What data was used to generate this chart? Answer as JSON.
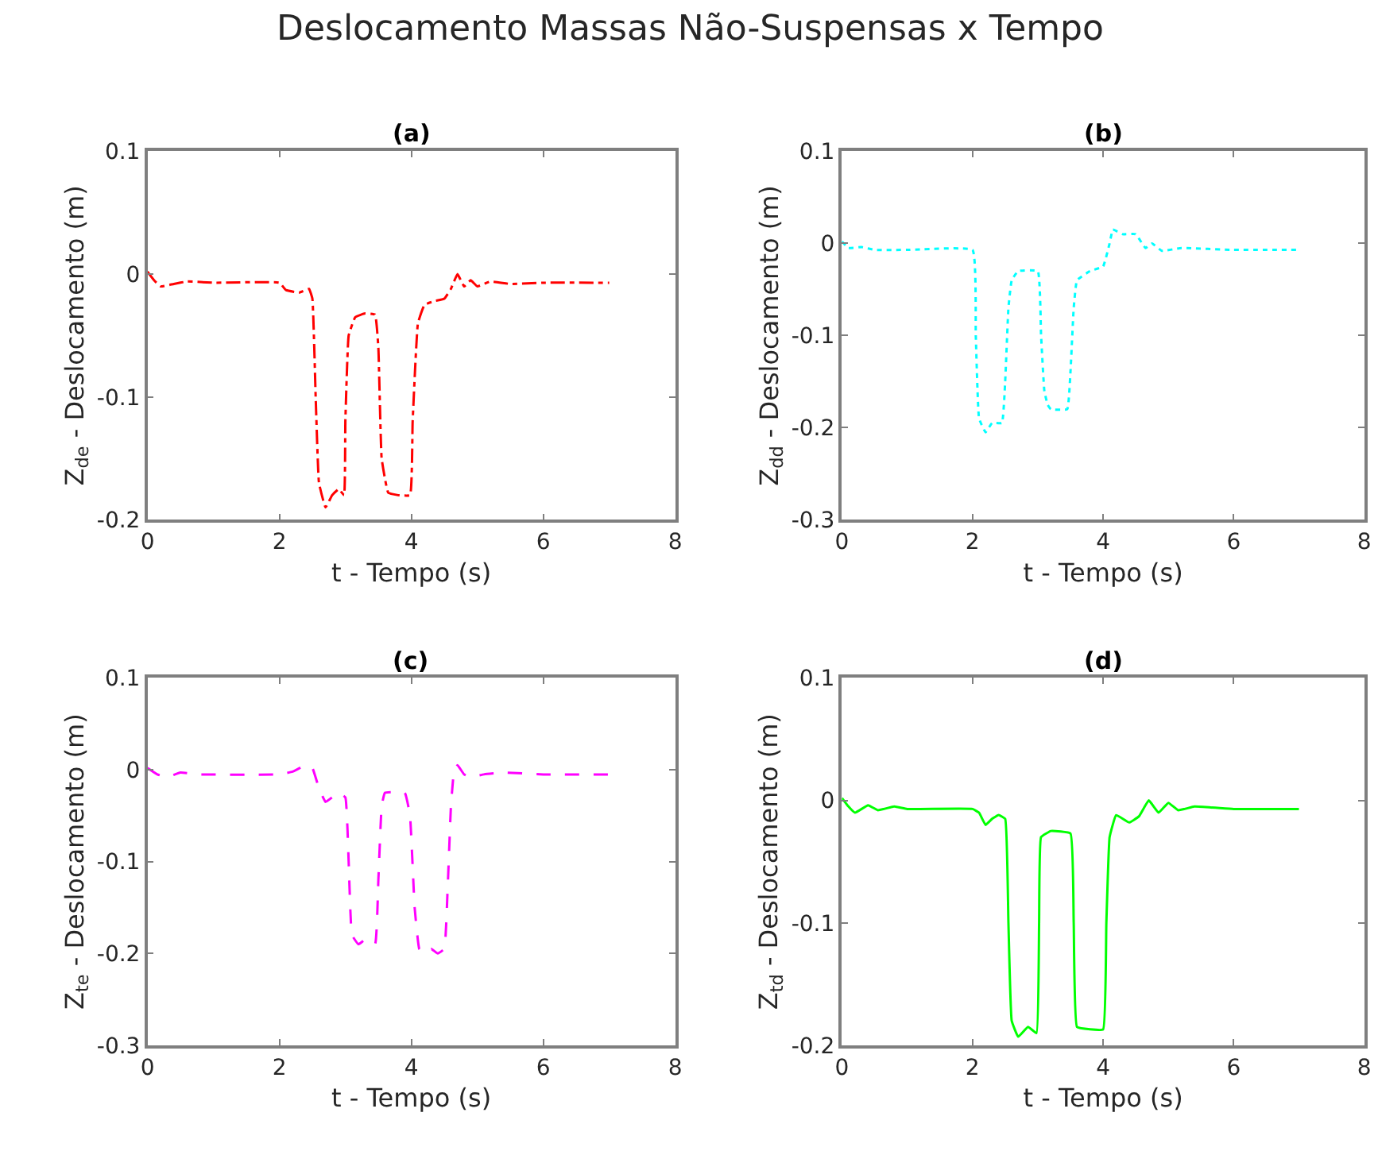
{
  "chart_data": [
    {
      "type": "line",
      "title": "(a)",
      "annotations": [
        "Deslocamento Massas Não-Suspensas x Tempo"
      ],
      "xlabel": "t - Tempo (s)",
      "ylabel": "Z$_{de}$ - Deslocamento (m)",
      "color": "#ff0000",
      "line_style": "dashdot",
      "xlim": [
        0,
        8
      ],
      "ylim": [
        -0.2,
        0.1
      ],
      "xticks": [
        0,
        2,
        4,
        6,
        8
      ],
      "yticks": [
        -0.2,
        -0.1,
        0,
        0.1
      ],
      "x": [
        0,
        0.1,
        0.2,
        0.4,
        0.6,
        1,
        2,
        2.1,
        2.3,
        2.45,
        2.5,
        2.55,
        2.6,
        2.7,
        2.8,
        2.9,
        2.98,
        3.0,
        3.05,
        3.15,
        3.3,
        3.45,
        3.5,
        3.55,
        3.65,
        3.8,
        3.98,
        4.02,
        4.1,
        4.2,
        4.35,
        4.5,
        4.6,
        4.7,
        4.8,
        4.9,
        5.0,
        5.2,
        5.5,
        6,
        7
      ],
      "values": [
        0.002,
        -0.005,
        -0.01,
        -0.008,
        -0.006,
        -0.007,
        -0.007,
        -0.013,
        -0.015,
        -0.012,
        -0.02,
        -0.1,
        -0.17,
        -0.19,
        -0.18,
        -0.175,
        -0.18,
        -0.12,
        -0.05,
        -0.035,
        -0.032,
        -0.033,
        -0.06,
        -0.15,
        -0.178,
        -0.18,
        -0.18,
        -0.12,
        -0.04,
        -0.025,
        -0.022,
        -0.02,
        -0.012,
        0.0,
        -0.01,
        -0.005,
        -0.01,
        -0.006,
        -0.008,
        -0.007,
        -0.007
      ]
    },
    {
      "type": "line",
      "title": "(b)",
      "xlabel": "t - Tempo (s)",
      "ylabel": "Z$_{dd}$ - Deslocamento (m)",
      "color": "#00ffff",
      "line_style": "dotted",
      "xlim": [
        0,
        8
      ],
      "ylim": [
        -0.3,
        0.1
      ],
      "xticks": [
        0,
        2,
        4,
        6,
        8
      ],
      "yticks": [
        -0.3,
        -0.2,
        -0.1,
        0,
        0.1
      ],
      "x": [
        0,
        0.1,
        0.3,
        0.5,
        1,
        2.0,
        2.05,
        2.1,
        2.2,
        2.3,
        2.45,
        2.5,
        2.55,
        2.6,
        2.7,
        3.0,
        3.05,
        3.1,
        3.15,
        3.2,
        3.45,
        3.5,
        3.55,
        3.6,
        3.8,
        4.0,
        4.1,
        4.15,
        4.3,
        4.5,
        4.65,
        4.75,
        4.9,
        5.2,
        6,
        7
      ],
      "values": [
        0.002,
        -0.005,
        -0.004,
        -0.007,
        -0.007,
        -0.007,
        -0.1,
        -0.19,
        -0.205,
        -0.195,
        -0.195,
        -0.15,
        -0.07,
        -0.04,
        -0.03,
        -0.03,
        -0.1,
        -0.16,
        -0.175,
        -0.18,
        -0.18,
        -0.14,
        -0.07,
        -0.04,
        -0.03,
        -0.025,
        0.0,
        0.015,
        0.01,
        0.01,
        -0.005,
        0.0,
        -0.008,
        -0.005,
        -0.007,
        -0.007
      ]
    },
    {
      "type": "line",
      "title": "(c)",
      "xlabel": "t - Tempo (s)",
      "ylabel": "Z$_{te}$ - Deslocamento (m)",
      "color": "#ff00ff",
      "line_style": "dashed",
      "xlim": [
        0,
        8
      ],
      "ylim": [
        -0.3,
        0.1
      ],
      "xticks": [
        0,
        2,
        4,
        6,
        8
      ],
      "yticks": [
        -0.3,
        -0.2,
        -0.1,
        0,
        0.1
      ],
      "x": [
        0,
        0.15,
        0.3,
        0.5,
        0.8,
        2,
        2.2,
        2.4,
        2.5,
        2.6,
        2.7,
        2.8,
        2.9,
        3.0,
        3.05,
        3.1,
        3.2,
        3.3,
        3.45,
        3.5,
        3.55,
        3.6,
        3.9,
        3.98,
        4.05,
        4.12,
        4.2,
        4.3,
        4.4,
        4.5,
        4.55,
        4.6,
        4.65,
        4.7,
        4.8,
        4.9,
        5.1,
        5.4,
        6,
        7
      ],
      "values": [
        0.002,
        -0.005,
        -0.008,
        -0.003,
        -0.005,
        -0.005,
        -0.002,
        0.005,
        0.002,
        -0.02,
        -0.035,
        -0.03,
        -0.025,
        -0.03,
        -0.1,
        -0.18,
        -0.19,
        -0.185,
        -0.19,
        -0.12,
        -0.04,
        -0.025,
        -0.025,
        -0.05,
        -0.15,
        -0.195,
        -0.2,
        -0.195,
        -0.2,
        -0.195,
        -0.13,
        -0.04,
        0.0,
        0.005,
        -0.005,
        -0.008,
        -0.005,
        -0.003,
        -0.005,
        -0.005
      ]
    },
    {
      "type": "line",
      "title": "(d)",
      "xlabel": "t - Tempo (s)",
      "ylabel": "Z$_{td}$ - Deslocamento (m)",
      "color": "#00ff00",
      "line_style": "solid",
      "xlim": [
        0,
        8
      ],
      "ylim": [
        -0.2,
        0.1
      ],
      "xticks": [
        0,
        2,
        4,
        6,
        8
      ],
      "yticks": [
        -0.2,
        -0.1,
        0,
        0.1
      ],
      "x": [
        0,
        0.1,
        0.2,
        0.4,
        0.55,
        0.8,
        1,
        2,
        2.1,
        2.2,
        2.3,
        2.4,
        2.5,
        2.55,
        2.6,
        2.7,
        2.85,
        2.98,
        3.02,
        3.05,
        3.2,
        3.5,
        3.55,
        3.6,
        3.8,
        4.0,
        4.05,
        4.1,
        4.2,
        4.4,
        4.55,
        4.7,
        4.85,
        5.0,
        5.15,
        5.4,
        6,
        7
      ],
      "values": [
        0.002,
        -0.005,
        -0.01,
        -0.004,
        -0.008,
        -0.005,
        -0.007,
        -0.007,
        -0.01,
        -0.02,
        -0.015,
        -0.012,
        -0.015,
        -0.1,
        -0.18,
        -0.193,
        -0.185,
        -0.19,
        -0.1,
        -0.03,
        -0.025,
        -0.027,
        -0.1,
        -0.185,
        -0.187,
        -0.187,
        -0.1,
        -0.03,
        -0.012,
        -0.018,
        -0.013,
        0.0,
        -0.01,
        -0.002,
        -0.008,
        -0.005,
        -0.007,
        -0.007
      ]
    }
  ]
}
